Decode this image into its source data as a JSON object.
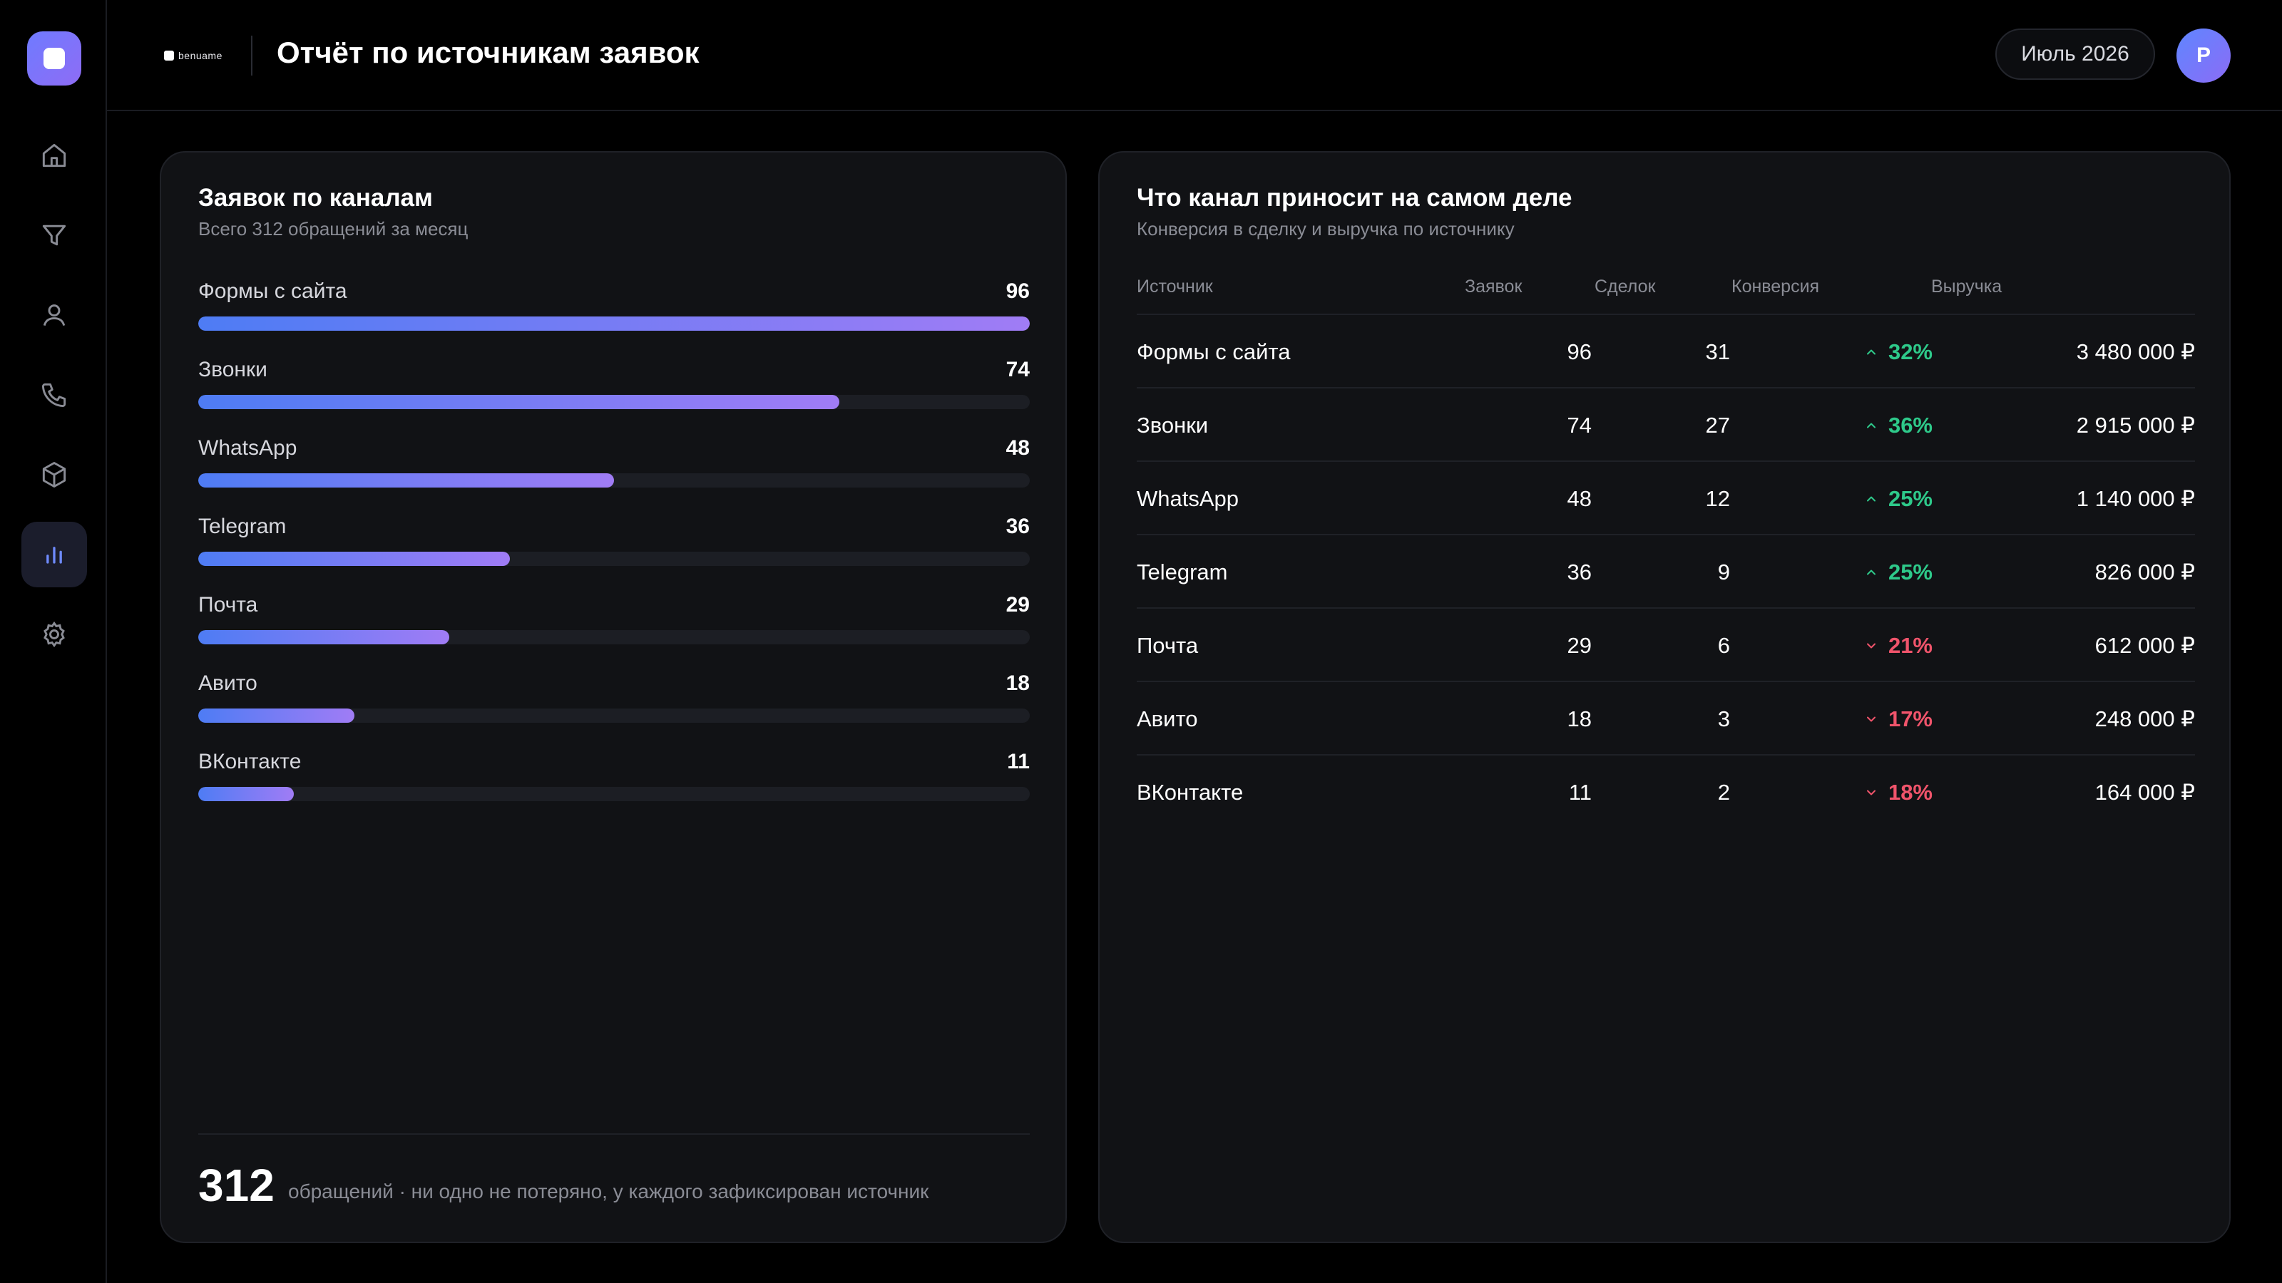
{
  "header": {
    "brand": "benuame",
    "title": "Отчёт по источникам заявок",
    "month": "Июль 2026",
    "avatar_initial": "P"
  },
  "sidebar": {
    "items": [
      {
        "icon": "home-icon"
      },
      {
        "icon": "funnel-icon"
      },
      {
        "icon": "user-icon"
      },
      {
        "icon": "phone-icon"
      },
      {
        "icon": "box-icon"
      },
      {
        "icon": "bar-chart-icon",
        "active": true
      },
      {
        "icon": "gear-icon"
      }
    ]
  },
  "left_card": {
    "title": "Заявок по каналам",
    "subtitle": "Всего 312 обращений за месяц",
    "footer_number": "312",
    "footer_text": "обращений · ни одно не потеряно, у каждого зафиксирован источник"
  },
  "chart_data": {
    "type": "bar",
    "categories": [
      "Формы с сайта",
      "Звонки",
      "WhatsApp",
      "Telegram",
      "Почта",
      "Авито",
      "ВКонтакте"
    ],
    "values": [
      96,
      74,
      48,
      36,
      29,
      18,
      11
    ],
    "value_labels": [
      "96",
      "74",
      "48",
      "36",
      "29",
      "18",
      "11"
    ],
    "xlim": [
      0,
      96
    ],
    "orientation": "horizontal"
  },
  "right_card": {
    "title": "Что канал приносит на самом деле",
    "subtitle": "Конверсия в сделку и выручка по источнику",
    "columns": {
      "source": "Источник",
      "leads": "Заявок",
      "deals": "Сделок",
      "conversion": "Конверсия",
      "revenue": "Выручка"
    },
    "rows": [
      {
        "source": "Формы с сайта",
        "leads": "96",
        "deals": "31",
        "conversion": "32%",
        "trend": "up",
        "revenue": "3 480 000 ₽"
      },
      {
        "source": "Звонки",
        "leads": "74",
        "deals": "27",
        "conversion": "36%",
        "trend": "up",
        "revenue": "2 915 000 ₽"
      },
      {
        "source": "WhatsApp",
        "leads": "48",
        "deals": "12",
        "conversion": "25%",
        "trend": "up",
        "revenue": "1 140 000 ₽"
      },
      {
        "source": "Telegram",
        "leads": "36",
        "deals": "9",
        "conversion": "25%",
        "trend": "up",
        "revenue": "826 000 ₽"
      },
      {
        "source": "Почта",
        "leads": "29",
        "deals": "6",
        "conversion": "21%",
        "trend": "down",
        "revenue": "612 000 ₽"
      },
      {
        "source": "Авито",
        "leads": "18",
        "deals": "3",
        "conversion": "17%",
        "trend": "down",
        "revenue": "248 000 ₽"
      },
      {
        "source": "ВКонтакте",
        "leads": "11",
        "deals": "2",
        "conversion": "18%",
        "trend": "down",
        "revenue": "164 000 ₽"
      }
    ]
  },
  "colors": {
    "accent_start": "#4e7cf4",
    "accent_end": "#a07cf5",
    "up": "#2ec98a",
    "down": "#f0546b"
  }
}
